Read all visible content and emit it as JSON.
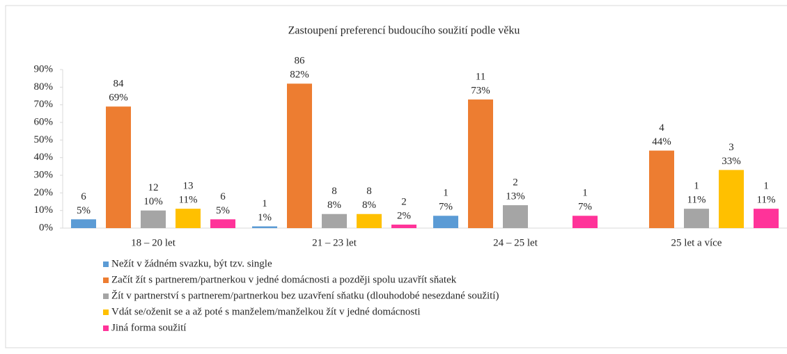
{
  "chart_data": {
    "type": "bar",
    "title": "Zastoupení preferencí budoucího soužití podle věku",
    "categories": [
      "18 – 20 let",
      "21 – 23 let",
      "24 – 25 let",
      "25 let a více"
    ],
    "ylim": [
      0,
      90
    ],
    "yticks": [
      {
        "value": 0,
        "label": "0%"
      },
      {
        "value": 10,
        "label": "10%"
      },
      {
        "value": 20,
        "label": "20%"
      },
      {
        "value": 30,
        "label": "30%"
      },
      {
        "value": 40,
        "label": "40%"
      },
      {
        "value": 50,
        "label": "50%"
      },
      {
        "value": 60,
        "label": "60%"
      },
      {
        "value": 70,
        "label": "70%"
      },
      {
        "value": 80,
        "label": "80%"
      },
      {
        "value": 90,
        "label": "90%"
      }
    ],
    "legend": "bottom",
    "series": [
      {
        "name": "Nežít v žádném svazku, být tzv. single",
        "color": "#5b9bd5",
        "values": [
          5,
          1,
          7,
          null
        ],
        "value_labels": [
          "5%",
          "1%",
          "7%",
          null
        ],
        "counts": [
          6,
          1,
          1,
          null
        ]
      },
      {
        "name": "Začít žít s partnerem/partnerkou v jedné domácnosti a později spolu uzavřít sňatek",
        "color": "#ed7d31",
        "values": [
          69,
          82,
          73,
          44
        ],
        "value_labels": [
          "69%",
          "82%",
          "73%",
          "44%"
        ],
        "counts": [
          84,
          86,
          11,
          4
        ]
      },
      {
        "name": "Žít v partnerství s partnerem/partnerkou bez uzavření sňatku (dlouhodobé nesezdané soužití)",
        "color": "#a5a5a5",
        "values": [
          10,
          8,
          13,
          11
        ],
        "value_labels": [
          "10%",
          "8%",
          "13%",
          "11%"
        ],
        "counts": [
          12,
          8,
          2,
          1
        ]
      },
      {
        "name": "Vdát se/oženit se a až poté s manželem/manželkou žít v jedné domácnosti",
        "color": "#ffc000",
        "values": [
          11,
          8,
          null,
          33
        ],
        "value_labels": [
          "11%",
          "8%",
          null,
          "33%"
        ],
        "counts": [
          13,
          8,
          null,
          3
        ]
      },
      {
        "name": "Jiná forma soužití",
        "color": "#ff3399",
        "values": [
          5,
          2,
          7,
          11
        ],
        "value_labels": [
          "5%",
          "2%",
          "7%",
          "11%"
        ],
        "counts": [
          6,
          2,
          1,
          1
        ]
      }
    ]
  }
}
